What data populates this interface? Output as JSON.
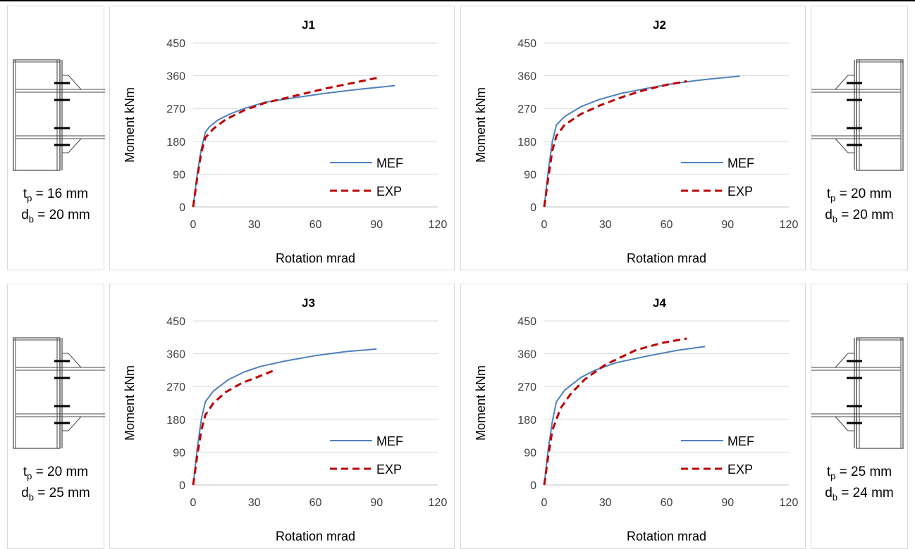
{
  "panels": [
    {
      "spec": {
        "tp_label": "t",
        "tp_sub": "p",
        "tp_value": " = 16 mm",
        "db_label": "d",
        "db_sub": "b",
        "db_value": " = 20 mm"
      }
    },
    {
      "spec": {
        "tp_label": "t",
        "tp_sub": "p",
        "tp_value": " = 20 mm",
        "db_label": "d",
        "db_sub": "b",
        "db_value": " = 20 mm"
      }
    },
    {
      "spec": {
        "tp_label": "t",
        "tp_sub": "p",
        "tp_value": " = 20 mm",
        "db_label": "d",
        "db_sub": "b",
        "db_value": " = 25 mm"
      }
    },
    {
      "spec": {
        "tp_label": "t",
        "tp_sub": "p",
        "tp_value": " = 25 mm",
        "db_label": "d",
        "db_sub": "b",
        "db_value": " = 24 mm"
      }
    }
  ],
  "series_colors": {
    "MEF": "#4f81bd",
    "EXP": "#c00000"
  },
  "chart_data": [
    {
      "type": "line",
      "title": "J1",
      "xlabel": "Rotation mrad",
      "ylabel": "Moment kNm",
      "xlim": [
        0,
        120
      ],
      "ylim": [
        0,
        450
      ],
      "xticks": [
        0,
        30,
        60,
        90,
        120
      ],
      "yticks": [
        0,
        90,
        180,
        270,
        360,
        450
      ],
      "grid": true,
      "legend": "bottom-right",
      "series": [
        {
          "name": "MEF",
          "style": "solid",
          "x": [
            0,
            2,
            4,
            6,
            8,
            12,
            18,
            25,
            35,
            50,
            65,
            80,
            99
          ],
          "y": [
            0,
            90,
            160,
            205,
            220,
            238,
            255,
            270,
            287,
            300,
            312,
            322,
            333
          ]
        },
        {
          "name": "EXP",
          "style": "dashed",
          "x": [
            0,
            2,
            4,
            6,
            10,
            16,
            25,
            35,
            50,
            65,
            80,
            91
          ],
          "y": [
            0,
            80,
            150,
            190,
            215,
            240,
            265,
            285,
            305,
            325,
            342,
            355
          ]
        }
      ]
    },
    {
      "type": "line",
      "title": "J2",
      "xlabel": "Rotation mrad",
      "ylabel": "Moment kNm",
      "xlim": [
        0,
        120
      ],
      "ylim": [
        0,
        450
      ],
      "xticks": [
        0,
        30,
        60,
        90,
        120
      ],
      "yticks": [
        0,
        90,
        180,
        270,
        360,
        450
      ],
      "grid": true,
      "legend": "bottom-right",
      "series": [
        {
          "name": "MEF",
          "style": "solid",
          "x": [
            0,
            2,
            4,
            6,
            10,
            18,
            27,
            38,
            50,
            62,
            75,
            85,
            96
          ],
          "y": [
            0,
            100,
            180,
            225,
            248,
            275,
            295,
            312,
            325,
            337,
            347,
            353,
            359
          ]
        },
        {
          "name": "EXP",
          "style": "dashed",
          "x": [
            0,
            2,
            4,
            6,
            10,
            18,
            28,
            40,
            50,
            60,
            70
          ],
          "y": [
            0,
            80,
            155,
            195,
            225,
            255,
            280,
            305,
            322,
            335,
            345
          ]
        }
      ]
    },
    {
      "type": "line",
      "title": "J3",
      "xlabel": "Rotation mrad",
      "ylabel": "Moment kNm",
      "xlim": [
        0,
        120
      ],
      "ylim": [
        0,
        450
      ],
      "xticks": [
        0,
        30,
        60,
        90,
        120
      ],
      "yticks": [
        0,
        90,
        180,
        270,
        360,
        450
      ],
      "grid": true,
      "legend": "bottom-right",
      "series": [
        {
          "name": "MEF",
          "style": "solid",
          "x": [
            0,
            2,
            4,
            6,
            10,
            17,
            25,
            33,
            45,
            60,
            75,
            90
          ],
          "y": [
            0,
            100,
            180,
            228,
            258,
            288,
            310,
            325,
            340,
            355,
            366,
            373
          ]
        },
        {
          "name": "EXP",
          "style": "dashed",
          "x": [
            0,
            2,
            4,
            6,
            10,
            16,
            24,
            32,
            40
          ],
          "y": [
            0,
            80,
            150,
            192,
            225,
            255,
            280,
            297,
            315
          ]
        }
      ]
    },
    {
      "type": "line",
      "title": "J4",
      "xlabel": "Rotation mrad",
      "ylabel": "Moment kNm",
      "xlim": [
        0,
        120
      ],
      "ylim": [
        0,
        450
      ],
      "xticks": [
        0,
        30,
        60,
        90,
        120
      ],
      "yticks": [
        0,
        90,
        180,
        270,
        360,
        450
      ],
      "grid": true,
      "legend": "bottom-right",
      "series": [
        {
          "name": "MEF",
          "style": "solid",
          "x": [
            0,
            2,
            4,
            6,
            10,
            18,
            25,
            35,
            50,
            65,
            79
          ],
          "y": [
            0,
            100,
            175,
            228,
            260,
            295,
            315,
            335,
            353,
            369,
            380
          ]
        },
        {
          "name": "EXP",
          "style": "dashed",
          "x": [
            0,
            2,
            4,
            8,
            13,
            20,
            30,
            45,
            58,
            70
          ],
          "y": [
            0,
            80,
            150,
            210,
            250,
            290,
            330,
            370,
            390,
            402
          ]
        }
      ]
    }
  ]
}
